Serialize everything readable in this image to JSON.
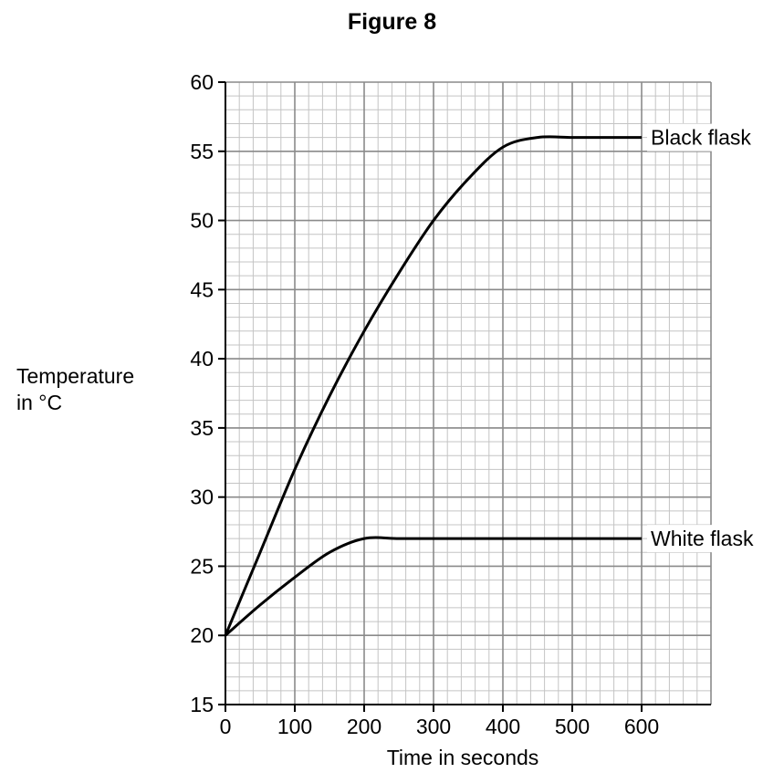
{
  "figure": {
    "title": "Figure 8"
  },
  "chart_data": {
    "type": "line",
    "title": "Figure 8",
    "xlabel": "Time in seconds",
    "ylabel_lines": [
      "Temperature",
      "in °C"
    ],
    "xlim": [
      0,
      700
    ],
    "ylim": [
      15,
      60
    ],
    "x_ticks": [
      0,
      100,
      200,
      300,
      400,
      500,
      600
    ],
    "y_ticks": [
      15,
      20,
      25,
      30,
      35,
      40,
      45,
      50,
      55,
      60
    ],
    "grid": true,
    "series": [
      {
        "name": "Black flask",
        "x": [
          0,
          50,
          100,
          150,
          200,
          250,
          300,
          350,
          400,
          450,
          500,
          550,
          600
        ],
        "y": [
          20,
          26,
          32,
          37.3,
          42,
          46.2,
          50,
          53,
          55.3,
          56,
          56,
          56,
          56
        ]
      },
      {
        "name": "White flask",
        "x": [
          0,
          50,
          100,
          150,
          200,
          250,
          300,
          350,
          400,
          450,
          500,
          550,
          600
        ],
        "y": [
          20,
          22.2,
          24.2,
          26,
          27,
          27,
          27,
          27,
          27,
          27,
          27,
          27,
          27
        ]
      }
    ]
  }
}
